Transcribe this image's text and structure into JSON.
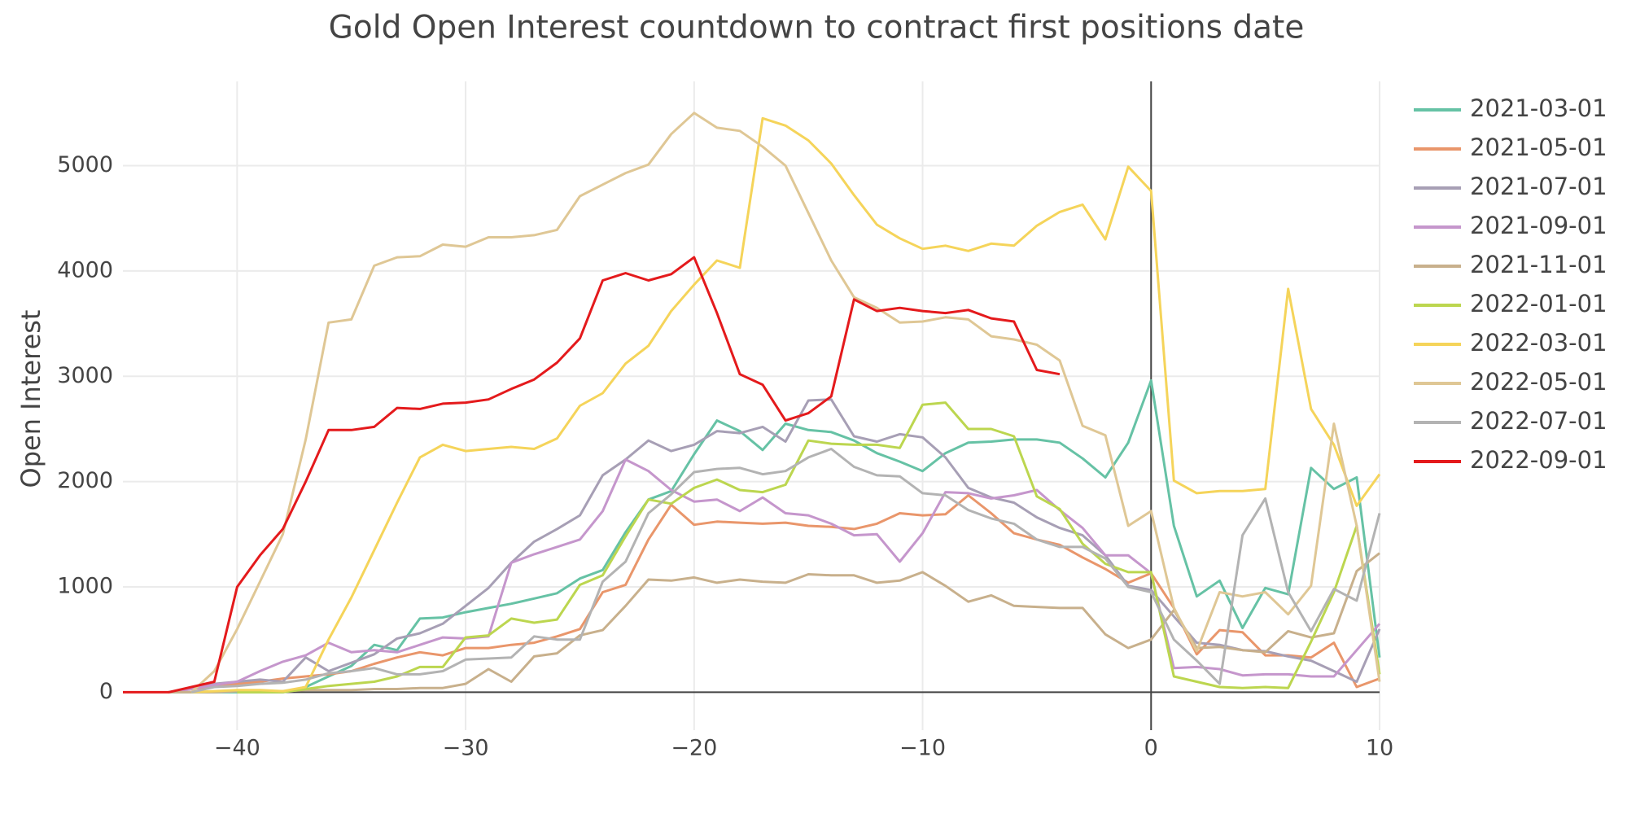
{
  "chart_data": {
    "type": "line",
    "title": "Gold Open Interest countdown to contract first positions date",
    "y_label": "Open Interest",
    "x": [
      -45,
      -44,
      -43,
      -42,
      -41,
      -40,
      -39,
      -38,
      -37,
      -36,
      -35,
      -34,
      -33,
      -32,
      -31,
      -30,
      -29,
      -28,
      -27,
      -26,
      -25,
      -24,
      -23,
      -22,
      -21,
      -20,
      -19,
      -18,
      -17,
      -16,
      -15,
      -14,
      -13,
      -12,
      -11,
      -10,
      -9,
      -8,
      -7,
      -6,
      -5,
      -4,
      -3,
      -2,
      -1,
      0,
      1,
      2,
      3,
      4,
      5,
      6,
      7,
      8,
      9,
      10
    ],
    "xlim": [
      -45,
      10
    ],
    "xticks": [
      {
        "value": -40,
        "label": "−40"
      },
      {
        "value": -30,
        "label": "−30"
      },
      {
        "value": -20,
        "label": "−20"
      },
      {
        "value": -10,
        "label": "−10"
      },
      0,
      10
    ],
    "ylim": [
      -360,
      5800
    ],
    "yticks": [
      0,
      1000,
      2000,
      3000,
      4000,
      5000
    ],
    "grid": true,
    "legend": "right",
    "series": [
      {
        "name": "2021-03-01",
        "color": "#66c2a5",
        "values": [
          null,
          null,
          0,
          0,
          0,
          0,
          0,
          0,
          50,
          150,
          250,
          450,
          400,
          700,
          710,
          760,
          800,
          840,
          890,
          940,
          1080,
          1160,
          1520,
          1830,
          1910,
          2260,
          2580,
          2480,
          2300,
          2550,
          2490,
          2470,
          2390,
          2270,
          2190,
          2100,
          2270,
          2370,
          2380,
          2400,
          2400,
          2370,
          2220,
          2040,
          2370,
          2960,
          1580,
          910,
          1060,
          610,
          990,
          930,
          2130,
          1930,
          2040,
          330
        ]
      },
      {
        "name": "2021-05-01",
        "color": "#e9966b",
        "values": [
          null,
          null,
          0,
          30,
          60,
          80,
          100,
          130,
          150,
          170,
          200,
          270,
          330,
          380,
          350,
          420,
          420,
          450,
          470,
          530,
          600,
          950,
          1020,
          1450,
          1780,
          1590,
          1620,
          1610,
          1600,
          1610,
          1580,
          1570,
          1550,
          1600,
          1700,
          1680,
          1690,
          1870,
          1700,
          1510,
          1450,
          1400,
          1280,
          1170,
          1040,
          1130,
          800,
          360,
          590,
          570,
          350,
          350,
          330,
          470,
          50,
          130
        ]
      },
      {
        "name": "2021-07-01",
        "color": "#a79fb5",
        "values": [
          null,
          null,
          0,
          40,
          80,
          100,
          120,
          100,
          330,
          200,
          280,
          360,
          510,
          560,
          650,
          820,
          990,
          1230,
          1430,
          1550,
          1680,
          2060,
          2210,
          2390,
          2290,
          2350,
          2480,
          2460,
          2520,
          2380,
          2770,
          2780,
          2430,
          2380,
          2450,
          2420,
          2230,
          1940,
          1850,
          1800,
          1660,
          1560,
          1490,
          1300,
          1010,
          970,
          720,
          470,
          450,
          400,
          390,
          340,
          300,
          200,
          100,
          600
        ]
      },
      {
        "name": "2021-09-01",
        "color": "#c596cc",
        "values": [
          null,
          null,
          0,
          30,
          70,
          100,
          200,
          290,
          350,
          470,
          380,
          400,
          380,
          450,
          520,
          510,
          530,
          1230,
          1310,
          1380,
          1450,
          1720,
          2210,
          2100,
          1920,
          1810,
          1830,
          1720,
          1850,
          1700,
          1680,
          1600,
          1490,
          1500,
          1240,
          1510,
          1900,
          1890,
          1840,
          1870,
          1920,
          1730,
          1560,
          1300,
          1300,
          1130,
          230,
          240,
          220,
          160,
          170,
          170,
          150,
          150,
          400,
          650
        ]
      },
      {
        "name": "2021-11-01",
        "color": "#c8b08c",
        "values": [
          null,
          null,
          0,
          0,
          0,
          10,
          10,
          10,
          20,
          20,
          20,
          30,
          30,
          40,
          40,
          80,
          220,
          100,
          340,
          370,
          540,
          590,
          820,
          1070,
          1060,
          1090,
          1040,
          1070,
          1050,
          1040,
          1120,
          1110,
          1110,
          1040,
          1060,
          1140,
          1010,
          860,
          920,
          820,
          810,
          800,
          800,
          550,
          420,
          500,
          780,
          420,
          430,
          400,
          380,
          580,
          520,
          560,
          1150,
          1320
        ]
      },
      {
        "name": "2022-01-01",
        "color": "#bcd64f",
        "values": [
          null,
          null,
          null,
          null,
          null,
          0,
          0,
          0,
          30,
          60,
          80,
          100,
          150,
          240,
          240,
          520,
          540,
          700,
          660,
          690,
          1020,
          1110,
          1480,
          1830,
          1790,
          1940,
          2020,
          1920,
          1900,
          1970,
          2390,
          2360,
          2350,
          2350,
          2320,
          2730,
          2750,
          2500,
          2500,
          2430,
          1860,
          1740,
          1410,
          1220,
          1140,
          1140,
          150,
          100,
          50,
          40,
          50,
          40,
          480,
          950,
          1580,
          170
        ]
      },
      {
        "name": "2022-03-01",
        "color": "#f5d45a",
        "values": [
          null,
          null,
          null,
          0,
          10,
          20,
          20,
          10,
          50,
          500,
          900,
          1350,
          1800,
          2230,
          2350,
          2290,
          2310,
          2330,
          2310,
          2410,
          2720,
          2840,
          3120,
          3290,
          3620,
          3870,
          4100,
          4030,
          5450,
          5380,
          5240,
          5020,
          4720,
          4440,
          4310,
          4210,
          4240,
          4190,
          4260,
          4240,
          4430,
          4560,
          4630,
          4300,
          4990,
          4760,
          2010,
          1890,
          1910,
          1910,
          1930,
          3830,
          2690,
          2350,
          1770,
          2070
        ]
      },
      {
        "name": "2022-05-01",
        "color": "#dfc795",
        "values": [
          null,
          null,
          null,
          0,
          200,
          600,
          1050,
          1500,
          2400,
          3510,
          3540,
          4050,
          4130,
          4140,
          4250,
          4230,
          4320,
          4320,
          4340,
          4390,
          4710,
          4820,
          4930,
          5010,
          5300,
          5500,
          5360,
          5330,
          5180,
          5000,
          4550,
          4100,
          3750,
          3650,
          3510,
          3520,
          3560,
          3540,
          3380,
          3350,
          3300,
          3150,
          2530,
          2440,
          1580,
          1720,
          800,
          390,
          950,
          910,
          950,
          740,
          1010,
          2550,
          1580,
          100
        ]
      },
      {
        "name": "2022-07-01",
        "color": "#b3b3b3",
        "values": [
          null,
          null,
          null,
          0,
          50,
          60,
          80,
          90,
          120,
          180,
          200,
          230,
          170,
          170,
          200,
          310,
          320,
          330,
          530,
          500,
          500,
          1050,
          1240,
          1700,
          1880,
          2090,
          2120,
          2130,
          2070,
          2100,
          2230,
          2310,
          2140,
          2060,
          2050,
          1890,
          1870,
          1730,
          1650,
          1600,
          1450,
          1380,
          1380,
          1270,
          1000,
          950,
          500,
          300,
          80,
          1490,
          1840,
          950,
          580,
          980,
          870,
          1700
        ]
      },
      {
        "name": "2022-09-01",
        "color": "#e41a1c",
        "values": [
          0,
          0,
          0,
          50,
          100,
          1000,
          1300,
          1550,
          2000,
          2490,
          2490,
          2520,
          2700,
          2690,
          2740,
          2750,
          2780,
          2880,
          2970,
          3130,
          3360,
          3910,
          3980,
          3910,
          3970,
          4130,
          3600,
          3020,
          2920,
          2580,
          2650,
          2810,
          3730,
          3620,
          3650,
          3620,
          3600,
          3630,
          3550,
          3520,
          3060,
          3020,
          null,
          null,
          null,
          null,
          null,
          null,
          null,
          null,
          null,
          null,
          null,
          null,
          null,
          null
        ]
      }
    ]
  }
}
